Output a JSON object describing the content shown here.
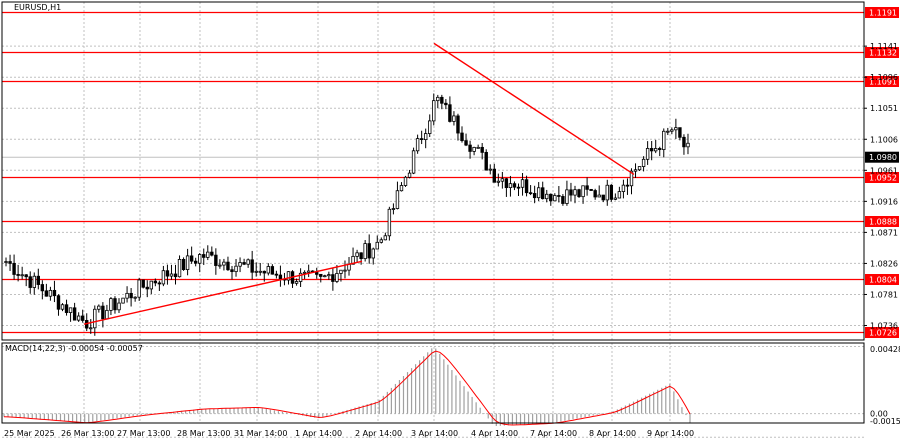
{
  "chart_data": [
    {
      "type": "candlestick",
      "title": "EURUSD,H1",
      "ylim": [
        1.0715,
        1.1205
      ],
      "ytick_labels": [
        "1.1141",
        "1.1096",
        "1.1051",
        "1.1006",
        "1.0961",
        "1.0916",
        "1.0871",
        "1.0826",
        "1.0781",
        "1.0736"
      ],
      "x_categories": [
        "25 Mar 2025",
        "26 Mar 13:00",
        "27 Mar 13:00",
        "28 Mar 13:00",
        "31 Mar 14:00",
        "1 Apr 14:00",
        "2 Apr 14:00",
        "3 Apr 14:00",
        "4 Apr 14:00",
        "7 Apr 14:00",
        "8 Apr 14:00",
        "9 Apr 14:00"
      ],
      "current_price": "1.0980",
      "levels": [
        {
          "label": "1.1191",
          "value": 1.1191
        },
        {
          "label": "1.1132",
          "value": 1.1132
        },
        {
          "label": "1.1091",
          "value": 1.1091
        },
        {
          "label": "1.0952",
          "value": 1.0952
        },
        {
          "label": "1.0888",
          "value": 1.0888
        },
        {
          "label": "1.0804",
          "value": 1.0804
        },
        {
          "label": "1.0726",
          "value": 1.0726
        }
      ],
      "trendlines": [
        {
          "from": {
            "x": "26 Mar 13:00",
            "y": 1.0738
          },
          "to": {
            "x": "2 Apr 14:00",
            "y": 1.0829
          }
        },
        {
          "from": {
            "x": "3 Apr 14:00",
            "y": 1.1145
          },
          "to": {
            "x": "8 Apr 14:00",
            "y": 1.0955
          }
        }
      ],
      "anchors": [
        [
          "25 Mar 2025",
          1.0829
        ],
        [
          "26 Mar 13:00",
          1.074
        ],
        [
          "27 Mar 13:00",
          1.0792
        ],
        [
          "28 Mar 13:00",
          1.0838
        ],
        [
          "31 Mar 14:00",
          1.0815
        ],
        [
          "1 Apr 14:00",
          1.08
        ],
        [
          "2 Apr 14:00",
          1.0857
        ],
        [
          "3 Apr 14:00",
          1.1065
        ],
        [
          "4 Apr 14:00",
          1.0952
        ],
        [
          "7 Apr 14:00",
          1.0925
        ],
        [
          "8 Apr 14:00",
          1.093
        ],
        [
          "9 Apr 14:00",
          1.102
        ],
        [
          "9 Apr 14:00",
          1.098
        ]
      ]
    },
    {
      "type": "histogram",
      "title": "MACD(14,22,3) -0.00054 -0.00057",
      "ylim": [
        -0.0006,
        0.0045
      ],
      "ytick_labels": [
        "0.00428",
        "0.00",
        "-0.00151"
      ],
      "series": [
        {
          "name": "MACD",
          "type": "bar"
        },
        {
          "name": "Signal",
          "type": "line"
        }
      ],
      "anchors": [
        [
          "25 Mar 2025",
          -0.0002
        ],
        [
          "26 Mar 13:00",
          -0.0006
        ],
        [
          "27 Mar 13:00",
          -0.0001
        ],
        [
          "28 Mar 13:00",
          0.0003
        ],
        [
          "31 Mar 14:00",
          0.0004
        ],
        [
          "1 Apr 14:00",
          -0.0003
        ],
        [
          "2 Apr 14:00",
          0.0008
        ],
        [
          "3 Apr 14:00",
          0.0043
        ],
        [
          "4 Apr 14:00",
          -0.0008
        ],
        [
          "7 Apr 14:00",
          -0.0006
        ],
        [
          "8 Apr 14:00",
          0.0001
        ],
        [
          "9 Apr 14:00",
          0.0019
        ],
        [
          "9 Apr 14:00",
          -0.0006
        ]
      ]
    }
  ],
  "colors": {
    "level": "#ff0000",
    "trend": "#ff0000",
    "candle": "#000000",
    "grid": "#c0c0c0",
    "macd": "#a0a0a0",
    "signal": "#ff0000"
  }
}
